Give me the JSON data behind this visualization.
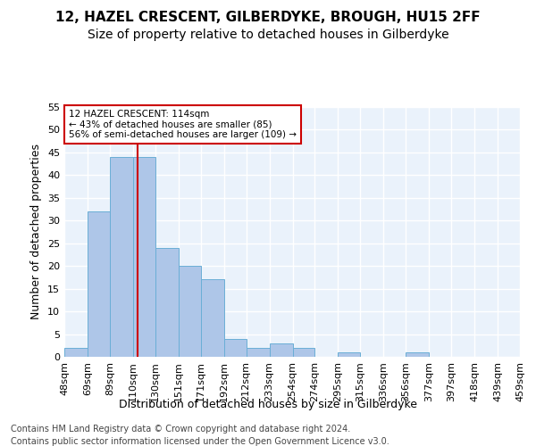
{
  "title1": "12, HAZEL CRESCENT, GILBERDYKE, BROUGH, HU15 2FF",
  "title2": "Size of property relative to detached houses in Gilberdyke",
  "xlabel": "Distribution of detached houses by size in Gilberdyke",
  "ylabel": "Number of detached properties",
  "bar_values": [
    2,
    32,
    44,
    44,
    24,
    20,
    17,
    4,
    2,
    3,
    2,
    0,
    1,
    0,
    0,
    1,
    0,
    0,
    0,
    0
  ],
  "bin_edges": [
    48,
    69,
    89,
    110,
    130,
    151,
    171,
    192,
    212,
    233,
    254,
    274,
    295,
    315,
    336,
    356,
    377,
    397,
    418,
    439,
    459
  ],
  "tick_labels": [
    "48sqm",
    "69sqm",
    "89sqm",
    "110sqm",
    "130sqm",
    "151sqm",
    "171sqm",
    "192sqm",
    "212sqm",
    "233sqm",
    "254sqm",
    "274sqm",
    "295sqm",
    "315sqm",
    "336sqm",
    "356sqm",
    "377sqm",
    "397sqm",
    "418sqm",
    "439sqm",
    "459sqm"
  ],
  "bar_color": "#AEC6E8",
  "bar_edge_color": "#6AAED6",
  "vline_x": 114,
  "vline_color": "#cc0000",
  "annotation_line1": "12 HAZEL CRESCENT: 114sqm",
  "annotation_line2": "← 43% of detached houses are smaller (85)",
  "annotation_line3": "56% of semi-detached houses are larger (109) →",
  "annotation_box_color": "#cc0000",
  "annotation_bg": "#ffffff",
  "ylim": [
    0,
    55
  ],
  "yticks": [
    0,
    5,
    10,
    15,
    20,
    25,
    30,
    35,
    40,
    45,
    50,
    55
  ],
  "bg_color": "#EAF2FB",
  "footer1": "Contains HM Land Registry data © Crown copyright and database right 2024.",
  "footer2": "Contains public sector information licensed under the Open Government Licence v3.0.",
  "title1_fontsize": 11,
  "title2_fontsize": 10,
  "xlabel_fontsize": 9,
  "ylabel_fontsize": 9,
  "tick_fontsize": 8,
  "footer_fontsize": 7
}
